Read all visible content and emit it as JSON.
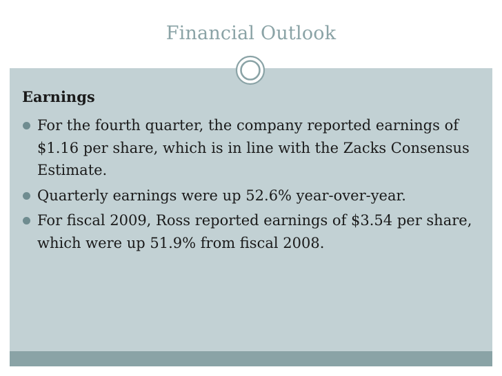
{
  "slide": {
    "title": "Financial Outlook",
    "heading": "Earnings",
    "bullets": [
      "For the fourth quarter, the company reported earnings of $1.16 per share, which is in line with the Zacks Consensus Estimate.",
      "Quarterly earnings were up 52.6% year-over-year.",
      "For fiscal 2009, Ross reported earnings of $3.54 per share, which were up 51.9% from fiscal 2008."
    ]
  },
  "colors": {
    "title": "#8aa3a6",
    "content_background": "#c2d1d4",
    "footer_band": "#8aa3a6",
    "bullet": "#6f8c90",
    "text": "#1a1a1a"
  },
  "icons": {
    "divider_ornament": "ring-icon",
    "bullet": "bullet-dot-icon"
  }
}
